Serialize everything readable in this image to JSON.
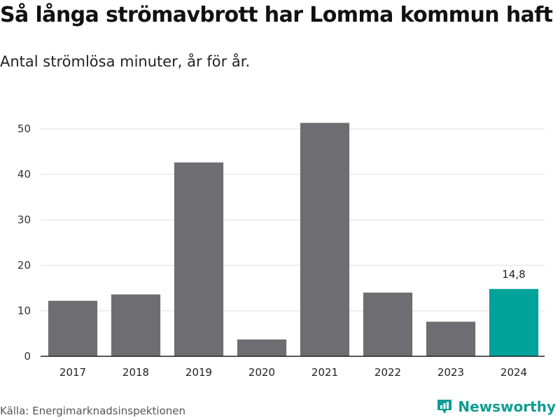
{
  "title": "Så långa strömavbrott har Lomma kommun haft",
  "subtitle": "Antal strömlösa minuter, år för år.",
  "source": "Källa: Energimarknadsinspektionen",
  "brand": {
    "name": "Newsworthy",
    "color": "#0f9c93"
  },
  "colors": {
    "bar": "#6e6d72",
    "highlight": "#00a39a",
    "grid": "#dddddd",
    "axis": "#222222"
  },
  "chart_data": {
    "type": "bar",
    "title": "Så långa strömavbrott har Lomma kommun haft",
    "subtitle": "Antal strömlösa minuter, år för år.",
    "xlabel": "",
    "ylabel": "",
    "categories": [
      "2017",
      "2018",
      "2019",
      "2020",
      "2021",
      "2022",
      "2023",
      "2024"
    ],
    "values": [
      12.2,
      13.6,
      42.6,
      3.7,
      51.3,
      14.0,
      7.6,
      14.8
    ],
    "ylim": [
      0,
      50
    ],
    "yticks": [
      "0",
      "10",
      "20",
      "30",
      "40",
      "50"
    ],
    "highlight_index": 7,
    "annotations": [
      {
        "category": "2024",
        "text": "14,8"
      }
    ],
    "grid": true,
    "legend": "none"
  }
}
